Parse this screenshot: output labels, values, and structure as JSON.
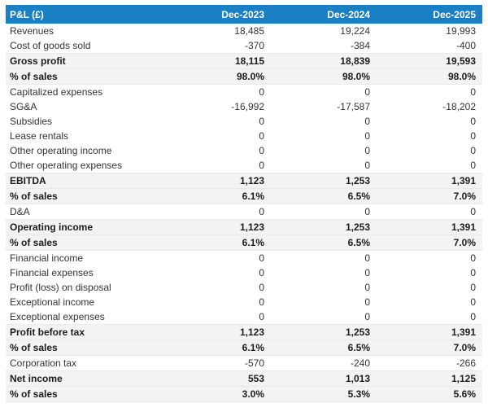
{
  "header": {
    "columns": [
      "P&L (£)",
      "Dec-2023",
      "Dec-2024",
      "Dec-2025"
    ]
  },
  "colors": {
    "header_bg": "#1b7fc4",
    "header_text": "#ffffff",
    "subtotal_row_bg": "#f3f3f3",
    "subtotal_row_border": "#e9e9e9",
    "body_text": "#333333"
  },
  "table": {
    "rows": [
      {
        "label": "Revenues",
        "values": [
          "18,485",
          "19,224",
          "19,993"
        ],
        "emphasis": false
      },
      {
        "label": "Cost of goods sold",
        "values": [
          "-370",
          "-384",
          "-400"
        ],
        "emphasis": false
      },
      {
        "label": "Gross profit",
        "values": [
          "18,115",
          "18,839",
          "19,593"
        ],
        "emphasis": true
      },
      {
        "label": "% of sales",
        "values": [
          "98.0%",
          "98.0%",
          "98.0%"
        ],
        "emphasis": true
      },
      {
        "label": "Capitalized expenses",
        "values": [
          "0",
          "0",
          "0"
        ],
        "emphasis": false
      },
      {
        "label": "SG&A",
        "values": [
          "-16,992",
          "-17,587",
          "-18,202"
        ],
        "emphasis": false
      },
      {
        "label": "Subsidies",
        "values": [
          "0",
          "0",
          "0"
        ],
        "emphasis": false
      },
      {
        "label": "Lease rentals",
        "values": [
          "0",
          "0",
          "0"
        ],
        "emphasis": false
      },
      {
        "label": "Other operating income",
        "values": [
          "0",
          "0",
          "0"
        ],
        "emphasis": false
      },
      {
        "label": "Other operating expenses",
        "values": [
          "0",
          "0",
          "0"
        ],
        "emphasis": false
      },
      {
        "label": "EBITDA",
        "values": [
          "1,123",
          "1,253",
          "1,391"
        ],
        "emphasis": true
      },
      {
        "label": "% of sales",
        "values": [
          "6.1%",
          "6.5%",
          "7.0%"
        ],
        "emphasis": true
      },
      {
        "label": "D&A",
        "values": [
          "0",
          "0",
          "0"
        ],
        "emphasis": false
      },
      {
        "label": "Operating income",
        "values": [
          "1,123",
          "1,253",
          "1,391"
        ],
        "emphasis": true
      },
      {
        "label": "% of sales",
        "values": [
          "6.1%",
          "6.5%",
          "7.0%"
        ],
        "emphasis": true
      },
      {
        "label": "Financial income",
        "values": [
          "0",
          "0",
          "0"
        ],
        "emphasis": false
      },
      {
        "label": "Financial expenses",
        "values": [
          "0",
          "0",
          "0"
        ],
        "emphasis": false
      },
      {
        "label": "Profit (loss) on disposal",
        "values": [
          "0",
          "0",
          "0"
        ],
        "emphasis": false
      },
      {
        "label": "Exceptional income",
        "values": [
          "0",
          "0",
          "0"
        ],
        "emphasis": false
      },
      {
        "label": "Exceptional expenses",
        "values": [
          "0",
          "0",
          "0"
        ],
        "emphasis": false
      },
      {
        "label": "Profit before tax",
        "values": [
          "1,123",
          "1,253",
          "1,391"
        ],
        "emphasis": true
      },
      {
        "label": "% of sales",
        "values": [
          "6.1%",
          "6.5%",
          "7.0%"
        ],
        "emphasis": true
      },
      {
        "label": "Corporation tax",
        "values": [
          "-570",
          "-240",
          "-266"
        ],
        "emphasis": false
      },
      {
        "label": "Net income",
        "values": [
          "553",
          "1,013",
          "1,125"
        ],
        "emphasis": true
      },
      {
        "label": "% of sales",
        "values": [
          "3.0%",
          "5.3%",
          "5.6%"
        ],
        "emphasis": true
      }
    ]
  }
}
